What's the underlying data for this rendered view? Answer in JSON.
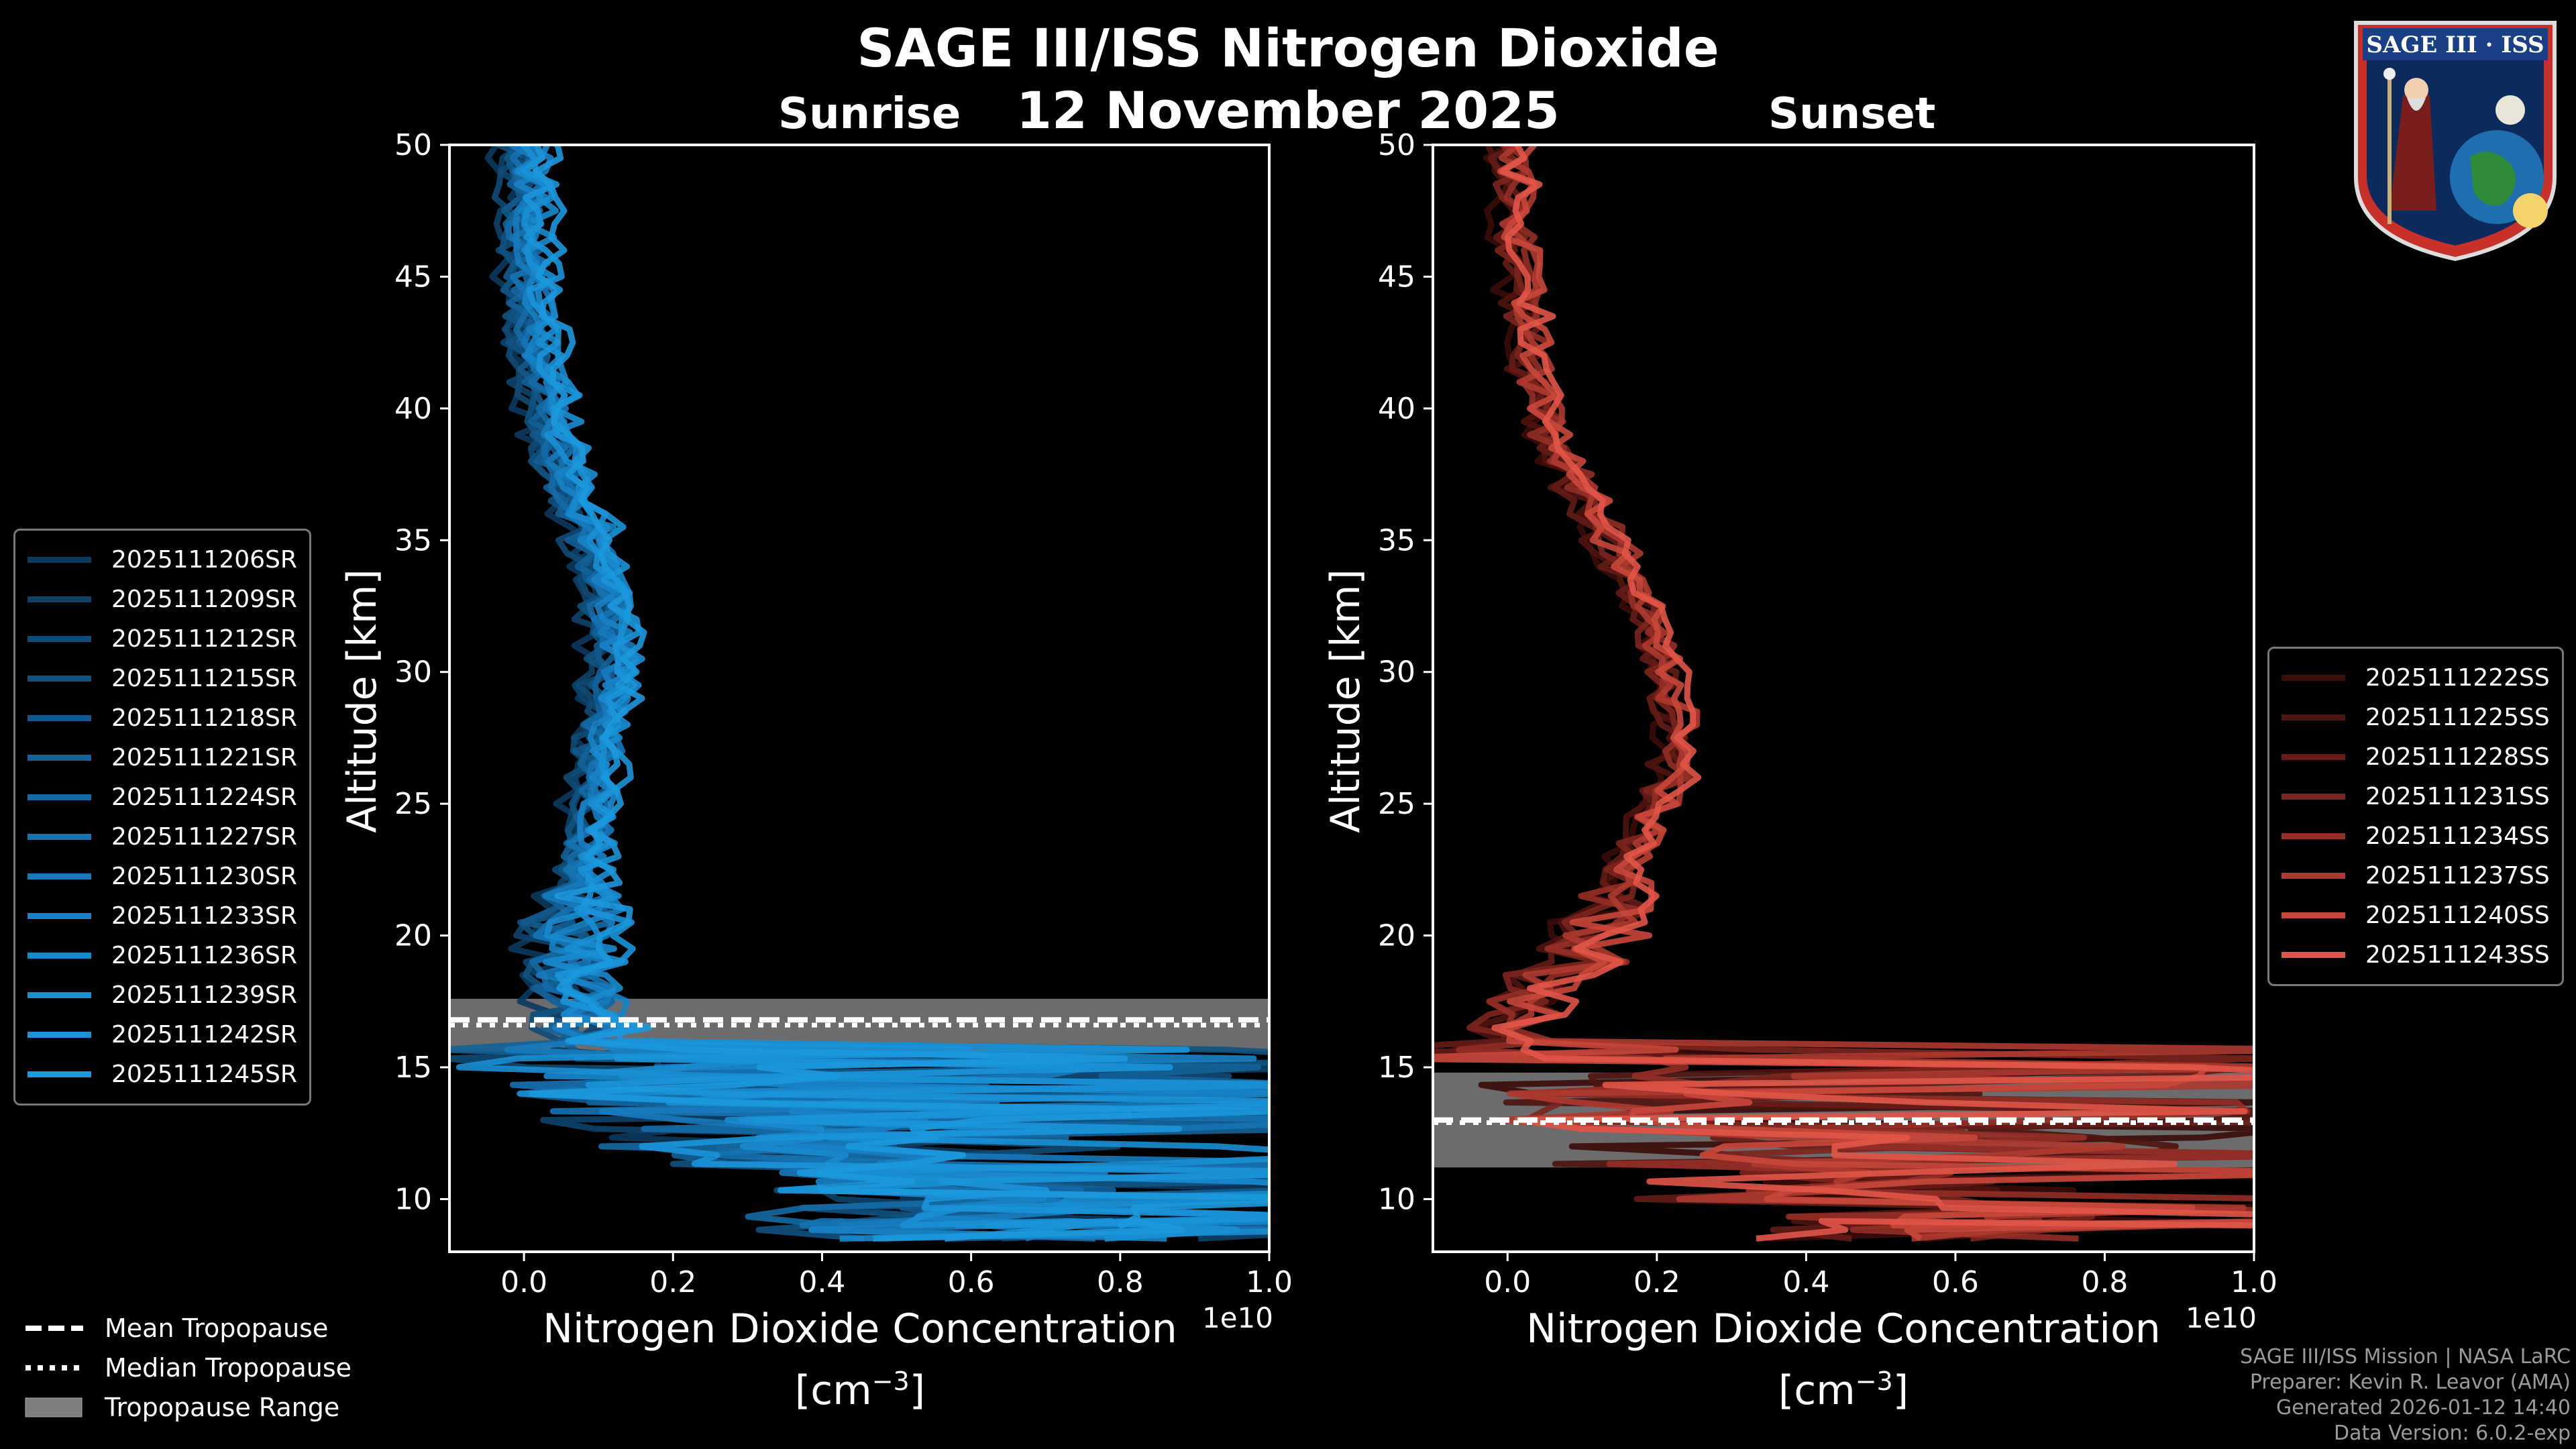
{
  "title": "SAGE III/ISS Nitrogen Dioxide",
  "date": "12 November 2025",
  "logo": {
    "text": "SAGE III · ISS"
  },
  "bottom_legend": [
    {
      "label": "Mean Tropopause",
      "style": "dashed"
    },
    {
      "label": "Median Tropopause",
      "style": "dotted"
    },
    {
      "label": "Tropopause Range",
      "style": "patch"
    }
  ],
  "footer": [
    "SAGE III/ISS Mission | NASA LaRC",
    "Preparer: Kevin R. Leavor (AMA)",
    "Generated 2026-01-12 14:40",
    "Data Version: 6.0.2-exp"
  ],
  "chart_data": [
    {
      "type": "line",
      "title": "Sunrise",
      "xlabel": "Nitrogen Dioxide Concentration",
      "xlabel_units": "[cm",
      "xlabel_exp": "−3",
      "ylabel": "Altitude [km]",
      "xlim": [
        -0.1,
        1.0
      ],
      "ylim": [
        8,
        50
      ],
      "x_offset": "1e10",
      "xticks": [
        0.0,
        0.2,
        0.4,
        0.6,
        0.8,
        1.0
      ],
      "xtick_labels": [
        "0.0",
        "0.2",
        "0.4",
        "0.6",
        "0.8",
        "1.0"
      ],
      "yticks": [
        10,
        15,
        20,
        25,
        30,
        35,
        40,
        45,
        50
      ],
      "legend_position": "left",
      "tropopause": {
        "mean": 16.8,
        "median": 16.6,
        "min": 15.6,
        "max": 17.6,
        "band_color": "#7f7f7f"
      },
      "profile_altitudes": [
        8.5,
        9,
        10,
        11,
        12,
        13,
        14,
        15,
        16,
        17,
        18,
        19,
        20,
        21,
        22,
        23,
        24,
        25,
        26,
        27,
        28,
        29,
        30,
        31,
        32,
        33,
        34,
        35,
        36,
        37,
        38,
        39,
        40,
        41,
        42,
        43,
        44,
        45,
        46,
        47,
        48,
        49,
        50
      ],
      "mean_profile": [
        0.6,
        0.6,
        0.5,
        0.4,
        0.3,
        0.22,
        0.16,
        0.12,
        0.09,
        0.08,
        0.07,
        0.07,
        0.07,
        0.075,
        0.08,
        0.085,
        0.09,
        0.095,
        0.1,
        0.105,
        0.11,
        0.115,
        0.12,
        0.12,
        0.115,
        0.11,
        0.1,
        0.09,
        0.075,
        0.06,
        0.05,
        0.04,
        0.032,
        0.025,
        0.02,
        0.015,
        0.012,
        0.01,
        0.008,
        0.006,
        0.005,
        0.004,
        0.003
      ],
      "series": [
        {
          "name": "2025111206SR",
          "color": "#0b3a5e"
        },
        {
          "name": "2025111209SR",
          "color": "#0d4269"
        },
        {
          "name": "2025111212SR",
          "color": "#0f4a75"
        },
        {
          "name": "2025111215SR",
          "color": "#105281"
        },
        {
          "name": "2025111218SR",
          "color": "#125a8d"
        },
        {
          "name": "2025111221SR",
          "color": "#136299"
        },
        {
          "name": "2025111224SR",
          "color": "#156aa5"
        },
        {
          "name": "2025111227SR",
          "color": "#1672b1"
        },
        {
          "name": "2025111230SR",
          "color": "#177abc"
        },
        {
          "name": "2025111233SR",
          "color": "#1882c6"
        },
        {
          "name": "2025111236SR",
          "color": "#1989ce"
        },
        {
          "name": "2025111239SR",
          "color": "#1a8fd4"
        },
        {
          "name": "2025111242SR",
          "color": "#1b94d9"
        },
        {
          "name": "2025111245SR",
          "color": "#1c98dd"
        }
      ]
    },
    {
      "type": "line",
      "title": "Sunset",
      "xlabel": "Nitrogen Dioxide Concentration",
      "xlabel_units": "[cm",
      "xlabel_exp": "−3",
      "ylabel": "Altitude [km]",
      "xlim": [
        -0.1,
        1.0
      ],
      "ylim": [
        8,
        50
      ],
      "x_offset": "1e10",
      "xticks": [
        0.0,
        0.2,
        0.4,
        0.6,
        0.8,
        1.0
      ],
      "xtick_labels": [
        "0.0",
        "0.2",
        "0.4",
        "0.6",
        "0.8",
        "1.0"
      ],
      "yticks": [
        10,
        15,
        20,
        25,
        30,
        35,
        40,
        45,
        50
      ],
      "legend_position": "right",
      "tropopause": {
        "mean": 13.0,
        "median": 12.9,
        "min": 11.2,
        "max": 14.8,
        "band_color": "#7f7f7f"
      },
      "profile_altitudes": [
        8.5,
        9,
        10,
        11,
        12,
        13,
        14,
        15,
        16,
        17,
        18,
        19,
        20,
        21,
        22,
        23,
        24,
        25,
        26,
        27,
        28,
        29,
        30,
        31,
        32,
        33,
        34,
        35,
        36,
        37,
        38,
        39,
        40,
        41,
        42,
        43,
        44,
        45,
        46,
        47,
        48,
        49,
        50
      ],
      "mean_profile": [
        0.55,
        0.5,
        0.4,
        0.3,
        0.22,
        0.15,
        0.08,
        0.03,
        0.0,
        0.02,
        0.06,
        0.1,
        0.13,
        0.15,
        0.16,
        0.17,
        0.19,
        0.21,
        0.22,
        0.23,
        0.23,
        0.22,
        0.21,
        0.2,
        0.19,
        0.17,
        0.15,
        0.13,
        0.11,
        0.09,
        0.07,
        0.055,
        0.045,
        0.035,
        0.03,
        0.025,
        0.02,
        0.015,
        0.012,
        0.01,
        0.008,
        0.006,
        0.005
      ],
      "series": [
        {
          "name": "2025111222SS",
          "color": "#3a0c0a"
        },
        {
          "name": "2025111225SS",
          "color": "#4f1410"
        },
        {
          "name": "2025111228SS",
          "color": "#651c17"
        },
        {
          "name": "2025111231SS",
          "color": "#7c251e"
        },
        {
          "name": "2025111234SS",
          "color": "#942f27"
        },
        {
          "name": "2025111237SS",
          "color": "#ad3a30"
        },
        {
          "name": "2025111240SS",
          "color": "#c8473b"
        },
        {
          "name": "2025111243SS",
          "color": "#e15548"
        }
      ]
    }
  ]
}
